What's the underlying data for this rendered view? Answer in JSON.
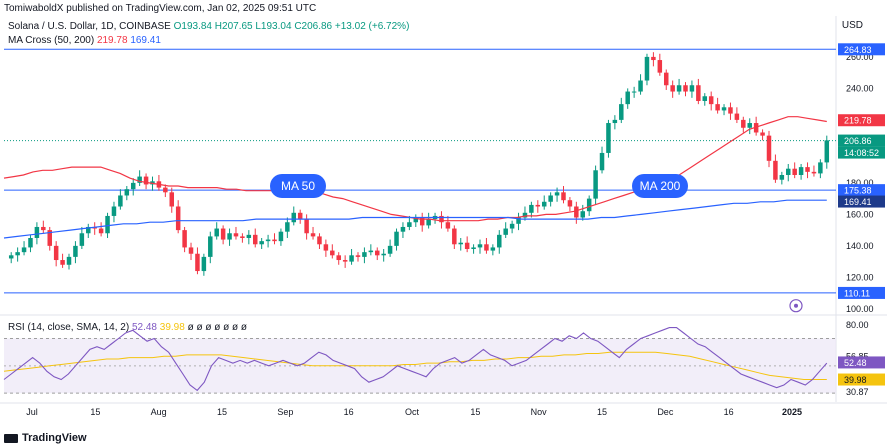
{
  "header": {
    "published": "TomiwaboldX published on TradingView.com, Jan 02, 2025 09:51 UTC",
    "currency": "USD"
  },
  "legend": {
    "symbol": "Solana / U.S. Dollar, 1D, COINBASE",
    "open": "O193.84",
    "high": "H207.65",
    "low": "L193.04",
    "close": "C206.86",
    "change": "+13.02 (+6.72%)",
    "ma_label": "MA Cross (50, 200)",
    "ma50_value": "219.78",
    "ma200_value": "169.41"
  },
  "rsi_legend": {
    "label": "RSI (14, close, SMA, 14, 2)",
    "rsi_value": "52.48",
    "sma_value": "39.98",
    "extras": "ø ø ø ø ø ø ø"
  },
  "footer": {
    "brand": "TradingView"
  },
  "annotations": {
    "ma50": "MA 50",
    "ma200": "MA 200"
  },
  "colors": {
    "up": "#089981",
    "down": "#f23645",
    "ma50": "#f23645",
    "ma200": "#2962ff",
    "rsi": "#7e57c2",
    "rsi_sma": "#f5c40f",
    "callout": "#2962ff",
    "level_line": "#2962ff"
  },
  "chart_data": [
    {
      "type": "candlestick",
      "title": "Solana / U.S. Dollar, 1D, COINBASE",
      "ylim": [
        98,
        272
      ],
      "price_axis_ticks": [
        "260.00",
        "240.00",
        "200.00",
        "180.00",
        "160.00",
        "140.00",
        "120.00",
        "100.00"
      ],
      "x_ticks": [
        "Jul",
        "15",
        "Aug",
        "15",
        "Sep",
        "16",
        "Oct",
        "15",
        "Nov",
        "15",
        "Dec",
        "16",
        "2025"
      ],
      "price_labels": [
        {
          "text": "264.83",
          "value": 264.83,
          "style": "level"
        },
        {
          "text": "219.78",
          "value": 219.78,
          "style": "ma50"
        },
        {
          "text": "206.86",
          "value": 206.86,
          "style": "last"
        },
        {
          "text": "14:08:52",
          "value": 206.86,
          "style": "countdown"
        },
        {
          "text": "175.38",
          "value": 175.38,
          "style": "level"
        },
        {
          "text": "169.41",
          "value": 169.41,
          "style": "ma200"
        },
        {
          "text": "110.11",
          "value": 110.11,
          "style": "level"
        }
      ],
      "horizontal_levels": [
        264.83,
        175.38,
        110.11
      ],
      "last_price": 206.86,
      "closes": [
        134,
        136,
        139,
        145,
        152,
        150,
        140,
        131,
        128,
        133,
        140,
        148,
        152,
        151,
        148,
        159,
        165,
        172,
        176,
        180,
        184,
        179,
        181,
        177,
        174,
        165,
        150,
        139,
        135,
        124,
        133,
        146,
        151,
        144,
        148,
        146,
        145,
        147,
        141,
        143,
        144,
        143,
        149,
        155,
        161,
        157,
        148,
        146,
        141,
        137,
        134,
        131,
        130,
        134,
        133,
        136,
        137,
        134,
        135,
        140,
        149,
        152,
        155,
        158,
        153,
        157,
        159,
        155,
        151,
        141,
        142,
        138,
        139,
        141,
        137,
        139,
        147,
        151,
        154,
        158,
        161,
        166,
        165,
        168,
        172,
        174,
        169,
        165,
        158,
        162,
        170,
        188,
        199,
        218,
        220,
        230,
        238,
        238,
        245,
        260,
        258,
        250,
        242,
        238,
        242,
        238,
        242,
        232,
        235,
        230,
        226,
        228,
        224,
        220,
        215,
        218,
        212,
        210,
        194,
        182,
        185,
        189,
        185,
        190,
        187,
        186,
        193,
        207
      ],
      "series": [
        {
          "name": "MA 50",
          "values": [
            183,
            184,
            185,
            187,
            188,
            188,
            189,
            190,
            190,
            190,
            190,
            188,
            186,
            183,
            181,
            180,
            179,
            178,
            178,
            177,
            177,
            177,
            177,
            176,
            176,
            175,
            175,
            175,
            175,
            175,
            175,
            175,
            174,
            173,
            171,
            170,
            168,
            166,
            164,
            162,
            160,
            159,
            158,
            157,
            157,
            156,
            156,
            156,
            156,
            156,
            157,
            157,
            158,
            158,
            159,
            159,
            160,
            160,
            161,
            162,
            164,
            166,
            168,
            170,
            172,
            174,
            176,
            178,
            180,
            182,
            186,
            190,
            194,
            198,
            202,
            206,
            210,
            214,
            216,
            218,
            220,
            222,
            222,
            221,
            220,
            219
          ]
        },
        {
          "name": "MA 200",
          "values": [
            145,
            146,
            147,
            148,
            149,
            150,
            151,
            152,
            153,
            154,
            154,
            155,
            155,
            156,
            156,
            156,
            156,
            156,
            156,
            157,
            157,
            157,
            157,
            157,
            157,
            157,
            157,
            158,
            158,
            158,
            158,
            158,
            158,
            158,
            158,
            158,
            158,
            158,
            158,
            157,
            157,
            157,
            157,
            157,
            157,
            158,
            158,
            159,
            160,
            161,
            162,
            163,
            164,
            165,
            166,
            167,
            167,
            168,
            168,
            169,
            169,
            169,
            169
          ]
        }
      ],
      "annotations": [
        "MA 50",
        "MA 200"
      ]
    },
    {
      "type": "line",
      "title": "RSI (14, close, SMA, 14, 2)",
      "ylim": [
        25,
        85
      ],
      "y_ticks": [
        "80.00",
        "56.85",
        "30.87"
      ],
      "value_labels": [
        {
          "text": "52.48",
          "value": 52.48,
          "style": "rsi"
        },
        {
          "text": "39.98",
          "value": 39.98,
          "style": "sma"
        }
      ],
      "band": [
        30,
        70
      ],
      "middle_line": 50,
      "series": [
        {
          "name": "RSI",
          "values": [
            40,
            44,
            48,
            52,
            56,
            52,
            46,
            42,
            40,
            44,
            50,
            56,
            62,
            64,
            62,
            66,
            70,
            74,
            76,
            72,
            68,
            70,
            64,
            60,
            52,
            44,
            36,
            32,
            38,
            50,
            56,
            54,
            52,
            54,
            52,
            54,
            52,
            50,
            52,
            54,
            52,
            50,
            52,
            56,
            60,
            58,
            54,
            52,
            50,
            48,
            42,
            38,
            40,
            42,
            46,
            50,
            48,
            46,
            44,
            42,
            48,
            52,
            54,
            56,
            52,
            54,
            58,
            62,
            58,
            56,
            54,
            50,
            52,
            54,
            58,
            62,
            66,
            70,
            68,
            72,
            70,
            74,
            70,
            68,
            64,
            60,
            56,
            62,
            66,
            70,
            72,
            74,
            76,
            78,
            78,
            74,
            70,
            66,
            64,
            60,
            56,
            52,
            48,
            44,
            42,
            40,
            38,
            36,
            34,
            36,
            40,
            38,
            36,
            40,
            46,
            52
          ]
        },
        {
          "name": "SMA",
          "values": [
            46,
            47,
            48,
            49,
            50,
            51,
            52,
            53,
            54,
            55,
            55,
            56,
            56,
            56,
            57,
            57,
            58,
            58,
            58,
            58,
            57,
            56,
            55,
            54,
            53,
            52,
            51,
            50,
            50,
            50,
            50,
            50,
            50,
            50,
            50,
            51,
            51,
            52,
            52,
            53,
            53,
            54,
            54,
            55,
            55,
            56,
            56,
            57,
            57,
            58,
            58,
            59,
            59,
            60,
            60,
            60,
            60,
            60,
            59,
            58,
            57,
            55,
            53,
            51,
            49,
            47,
            45,
            43,
            42,
            41,
            40,
            40,
            40
          ]
        }
      ]
    }
  ]
}
